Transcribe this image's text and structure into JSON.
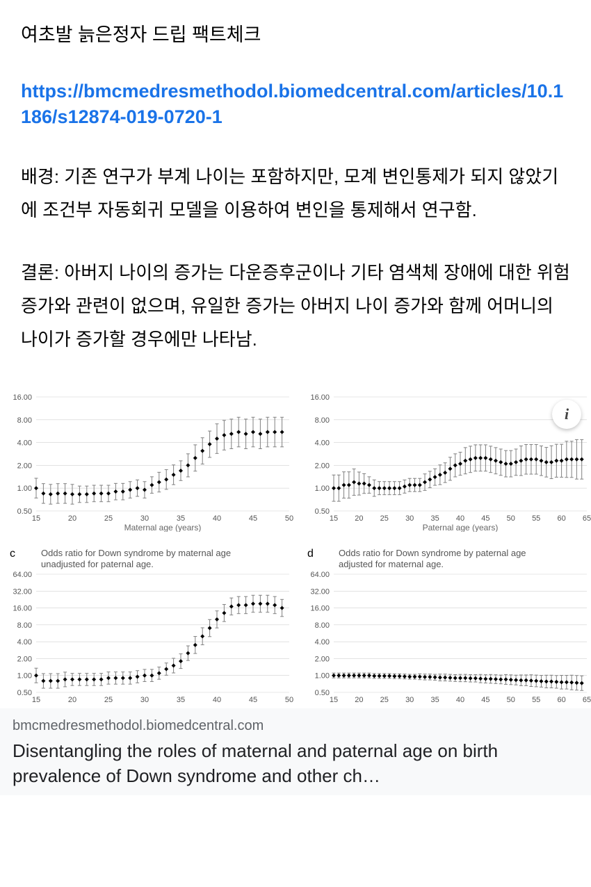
{
  "header": {
    "title": "여초발 늙은정자 드립 팩트체크",
    "url": "https://bmcmedresmethodol.biomedcentral.com/articles/10.1186/s12874-019-0720-1"
  },
  "paragraphs": {
    "background": "배경: 기존 연구가 부계 나이는 포함하지만, 모계 변인통제가 되지 않았기에 조건부 자동회귀 모델을 이용하여 변인을 통제해서 연구함.",
    "conclusion": "결론: 아버지 나이의 증가는 다운증후군이나 기타 염색체 장애에 대한 위험증가와 관련이 없으며, 유일한 증가는 아버지 나이 증가와 함께 어머니의 나이가 증가할 경우에만 나타남."
  },
  "charts": {
    "topLeft": {
      "type": "errorbar",
      "xlabel": "Maternal age (years)",
      "yticks": [
        0.5,
        1.0,
        2.0,
        4.0,
        8.0,
        16.0
      ],
      "ytick_labels": [
        "0.50",
        "1.00",
        "2.00",
        "4.00",
        "8.00",
        "16.00"
      ],
      "xmin": 15,
      "xmax": 50,
      "xtick_step": 5,
      "ymin": 0.5,
      "ymax": 16.0,
      "log": true,
      "marker_color": "#000000",
      "error_color": "#808080",
      "x": [
        15,
        16,
        17,
        18,
        19,
        20,
        21,
        22,
        23,
        24,
        25,
        26,
        27,
        28,
        29,
        30,
        31,
        32,
        33,
        34,
        35,
        36,
        37,
        38,
        39,
        40,
        41,
        42,
        43,
        44,
        45,
        46,
        47,
        48,
        49
      ],
      "y": [
        1.0,
        0.85,
        0.83,
        0.85,
        0.85,
        0.83,
        0.83,
        0.83,
        0.85,
        0.85,
        0.85,
        0.9,
        0.9,
        0.95,
        1.0,
        0.95,
        1.1,
        1.2,
        1.3,
        1.5,
        1.7,
        2.0,
        2.5,
        3.1,
        3.8,
        4.5,
        5.0,
        5.2,
        5.5,
        5.2,
        5.5,
        5.2,
        5.5,
        5.5,
        5.5
      ],
      "err": [
        0.3,
        0.3,
        0.3,
        0.3,
        0.3,
        0.3,
        0.25,
        0.25,
        0.25,
        0.25,
        0.25,
        0.25,
        0.25,
        0.25,
        0.25,
        0.25,
        0.25,
        0.3,
        0.3,
        0.3,
        0.3,
        0.35,
        0.4,
        0.4,
        0.4,
        0.45,
        0.45,
        0.45,
        0.45,
        0.45,
        0.45,
        0.45,
        0.45,
        0.45,
        0.45
      ]
    },
    "topRight": {
      "type": "errorbar",
      "xlabel": "Paternal age (years)",
      "yticks": [
        0.5,
        1.0,
        2.0,
        4.0,
        8.0,
        16.0
      ],
      "ytick_labels": [
        "0.50",
        "1.00",
        "2.00",
        "4.00",
        "8.00",
        "16.00"
      ],
      "xmin": 15,
      "xmax": 65,
      "xtick_step": 5,
      "ymin": 0.5,
      "ymax": 16.0,
      "log": true,
      "marker_color": "#000000",
      "error_color": "#808080",
      "x": [
        15,
        16,
        17,
        18,
        19,
        20,
        21,
        22,
        23,
        24,
        25,
        26,
        27,
        28,
        29,
        30,
        31,
        32,
        33,
        34,
        35,
        36,
        37,
        38,
        39,
        40,
        41,
        42,
        43,
        44,
        45,
        46,
        47,
        48,
        49,
        50,
        51,
        52,
        53,
        54,
        55,
        56,
        57,
        58,
        59,
        60,
        61,
        62,
        63,
        64
      ],
      "y": [
        1.0,
        1.0,
        1.1,
        1.1,
        1.2,
        1.15,
        1.15,
        1.1,
        1.0,
        1.0,
        1.0,
        1.0,
        1.0,
        1.0,
        1.05,
        1.1,
        1.1,
        1.1,
        1.2,
        1.3,
        1.4,
        1.5,
        1.6,
        1.8,
        2.0,
        2.1,
        2.3,
        2.4,
        2.5,
        2.5,
        2.5,
        2.4,
        2.3,
        2.2,
        2.1,
        2.1,
        2.2,
        2.3,
        2.4,
        2.4,
        2.4,
        2.3,
        2.2,
        2.2,
        2.3,
        2.3,
        2.4,
        2.4,
        2.4,
        2.4
      ],
      "err": [
        0.4,
        0.4,
        0.4,
        0.4,
        0.4,
        0.35,
        0.3,
        0.25,
        0.25,
        0.2,
        0.2,
        0.2,
        0.2,
        0.2,
        0.2,
        0.2,
        0.2,
        0.2,
        0.25,
        0.25,
        0.25,
        0.3,
        0.3,
        0.35,
        0.35,
        0.35,
        0.4,
        0.4,
        0.4,
        0.4,
        0.4,
        0.4,
        0.4,
        0.4,
        0.4,
        0.4,
        0.4,
        0.45,
        0.45,
        0.45,
        0.45,
        0.45,
        0.45,
        0.5,
        0.5,
        0.5,
        0.55,
        0.55,
        0.6,
        0.6
      ]
    },
    "bottomLeft": {
      "panel_label": "c",
      "subtitle": "Odds ratio for Down syndrome by maternal age unadjusted for paternal age.",
      "type": "errorbar",
      "xlabel": "",
      "yticks": [
        0.5,
        1.0,
        2.0,
        4.0,
        8.0,
        16.0,
        32.0,
        64.0
      ],
      "ytick_labels": [
        "0.50",
        "1.00",
        "2.00",
        "4.00",
        "8.00",
        "16.00",
        "32.00",
        "64.00"
      ],
      "xmin": 15,
      "xmax": 50,
      "xtick_step": 5,
      "ymin": 0.5,
      "ymax": 64.0,
      "log": true,
      "marker_color": "#000000",
      "error_color": "#808080",
      "x": [
        15,
        16,
        17,
        18,
        19,
        20,
        21,
        22,
        23,
        24,
        25,
        26,
        27,
        28,
        29,
        30,
        31,
        32,
        33,
        34,
        35,
        36,
        37,
        38,
        39,
        40,
        41,
        42,
        43,
        44,
        45,
        46,
        47,
        48,
        49
      ],
      "y": [
        1.0,
        0.8,
        0.8,
        0.8,
        0.85,
        0.85,
        0.85,
        0.85,
        0.85,
        0.85,
        0.9,
        0.9,
        0.9,
        0.9,
        0.95,
        1.0,
        1.0,
        1.1,
        1.3,
        1.5,
        1.8,
        2.5,
        3.5,
        5.0,
        7.0,
        10.0,
        13.0,
        17.0,
        18.0,
        18.0,
        19.0,
        19.0,
        19.0,
        18.0,
        16.0
      ],
      "err": [
        0.3,
        0.3,
        0.3,
        0.3,
        0.3,
        0.25,
        0.25,
        0.25,
        0.25,
        0.25,
        0.25,
        0.25,
        0.25,
        0.25,
        0.25,
        0.25,
        0.25,
        0.25,
        0.25,
        0.3,
        0.3,
        0.3,
        0.35,
        0.35,
        0.35,
        0.35,
        0.35,
        0.35,
        0.35,
        0.35,
        0.35,
        0.35,
        0.35,
        0.35,
        0.35
      ]
    },
    "bottomRight": {
      "panel_label": "d",
      "subtitle": "Odds ratio for Down syndrome by paternal age adjusted for maternal age.",
      "type": "errorbar",
      "xlabel": "",
      "yticks": [
        0.5,
        1.0,
        2.0,
        4.0,
        8.0,
        16.0,
        32.0,
        64.0
      ],
      "ytick_labels": [
        "0.50",
        "1.00",
        "2.00",
        "4.00",
        "8.00",
        "16.00",
        "32.00",
        "64.00"
      ],
      "xmin": 15,
      "xmax": 65,
      "xtick_step": 5,
      "ymin": 0.5,
      "ymax": 64.0,
      "log": true,
      "marker_color": "#000000",
      "error_color": "#808080",
      "x": [
        15,
        16,
        17,
        18,
        19,
        20,
        21,
        22,
        23,
        24,
        25,
        26,
        27,
        28,
        29,
        30,
        31,
        32,
        33,
        34,
        35,
        36,
        37,
        38,
        39,
        40,
        41,
        42,
        43,
        44,
        45,
        46,
        47,
        48,
        49,
        50,
        51,
        52,
        53,
        54,
        55,
        56,
        57,
        58,
        59,
        60,
        61,
        62,
        63,
        64
      ],
      "y": [
        1.0,
        1.0,
        1.0,
        1.0,
        1.0,
        1.0,
        1.0,
        1.0,
        0.98,
        0.98,
        0.98,
        0.98,
        0.97,
        0.97,
        0.96,
        0.95,
        0.95,
        0.95,
        0.94,
        0.94,
        0.93,
        0.92,
        0.92,
        0.91,
        0.9,
        0.9,
        0.9,
        0.89,
        0.89,
        0.88,
        0.87,
        0.87,
        0.86,
        0.85,
        0.85,
        0.84,
        0.83,
        0.82,
        0.82,
        0.81,
        0.8,
        0.79,
        0.78,
        0.78,
        0.77,
        0.76,
        0.76,
        0.75,
        0.74,
        0.73
      ],
      "err": [
        0.1,
        0.1,
        0.1,
        0.1,
        0.1,
        0.1,
        0.1,
        0.1,
        0.1,
        0.1,
        0.1,
        0.1,
        0.1,
        0.1,
        0.1,
        0.1,
        0.1,
        0.12,
        0.12,
        0.12,
        0.12,
        0.14,
        0.14,
        0.14,
        0.14,
        0.15,
        0.15,
        0.15,
        0.15,
        0.17,
        0.17,
        0.18,
        0.18,
        0.18,
        0.2,
        0.2,
        0.2,
        0.22,
        0.22,
        0.24,
        0.24,
        0.24,
        0.26,
        0.26,
        0.26,
        0.28,
        0.28,
        0.3,
        0.3,
        0.3
      ]
    }
  },
  "linkCard": {
    "domain": "bmcmedresmethodol.biomedcentral.com",
    "title": "Disentangling the roles of maternal and paternal age on birth prevalence of Down syndrome and other ch…"
  },
  "info_icon": "i"
}
